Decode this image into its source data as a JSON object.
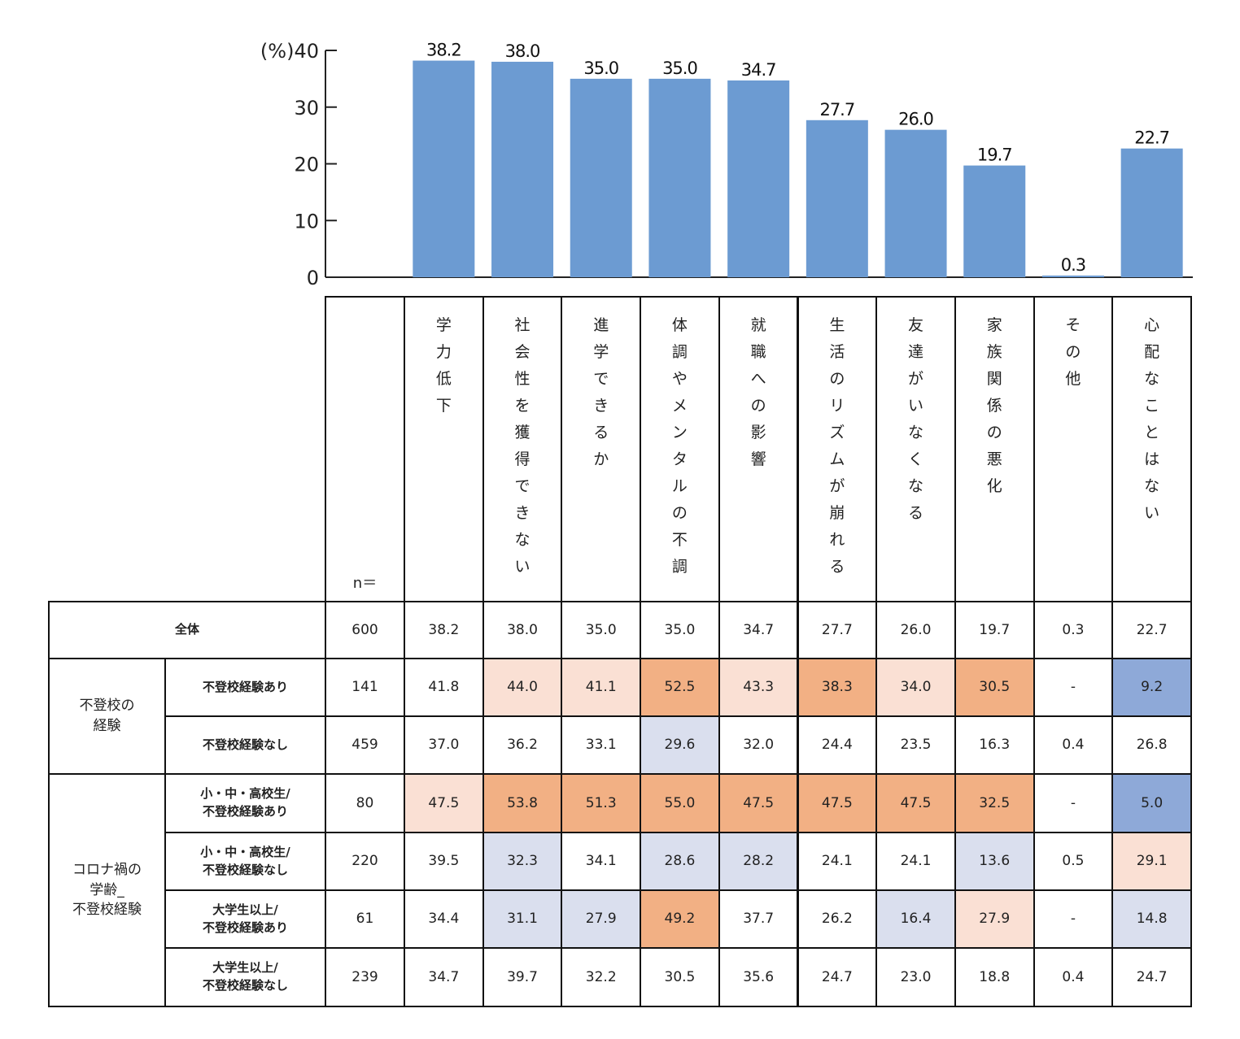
{
  "chart_data": {
    "type": "bar",
    "y_unit_label": "(%)",
    "ylim": [
      0,
      40
    ],
    "yticks": [
      0,
      10,
      20,
      30,
      40
    ],
    "categories": [
      "学力低下",
      "社会性を獲得できない",
      "進学できるか",
      "体調やメンタルの不調",
      "就職への影響",
      "生活のリズムが崩れる",
      "友達がいなくなる",
      "家族関係の悪化",
      "その他",
      "心配なことはない"
    ],
    "values": [
      38.2,
      38.0,
      35.0,
      35.0,
      34.7,
      27.7,
      26.0,
      19.7,
      0.3,
      22.7
    ],
    "value_labels": [
      "38.2",
      "38.0",
      "35.0",
      "35.0",
      "34.7",
      "27.7",
      "26.0",
      "19.7",
      "0.3",
      "22.7"
    ],
    "bar_color": "#6C9BD2"
  },
  "table": {
    "n_label": "n＝",
    "highlight_colors": {
      "o": "#F2B084",
      "lo": "#FAE0D4",
      "lb": "#DADFEE",
      "b": "#8EA9D8"
    },
    "groups": [
      {
        "label": "全体",
        "rows": [
          0
        ]
      },
      {
        "label": "不登校の\n経験",
        "rows": [
          1,
          2
        ]
      },
      {
        "label": "コロナ禍の\n学齢_\n不登校経験",
        "rows": [
          3,
          4,
          5,
          6
        ]
      }
    ],
    "rows": [
      {
        "label": "",
        "n": "600",
        "values": [
          "38.2",
          "38.0",
          "35.0",
          "35.0",
          "34.7",
          "27.7",
          "26.0",
          "19.7",
          "0.3",
          "22.7"
        ],
        "hl": [
          "",
          "",
          "",
          "",
          "",
          "",
          "",
          "",
          "",
          ""
        ]
      },
      {
        "label": "不登校経験あり",
        "n": "141",
        "values": [
          "41.8",
          "44.0",
          "41.1",
          "52.5",
          "43.3",
          "38.3",
          "34.0",
          "30.5",
          "-",
          "9.2"
        ],
        "hl": [
          "",
          "lo",
          "lo",
          "o",
          "lo",
          "o",
          "lo",
          "o",
          "",
          "b"
        ]
      },
      {
        "label": "不登校経験なし",
        "n": "459",
        "values": [
          "37.0",
          "36.2",
          "33.1",
          "29.6",
          "32.0",
          "24.4",
          "23.5",
          "16.3",
          "0.4",
          "26.8"
        ],
        "hl": [
          "",
          "",
          "",
          "lb",
          "",
          "",
          "",
          "",
          "",
          ""
        ]
      },
      {
        "label": "小・中・高校生/\n不登校経験あり",
        "n": "80",
        "values": [
          "47.5",
          "53.8",
          "51.3",
          "55.0",
          "47.5",
          "47.5",
          "47.5",
          "32.5",
          "-",
          "5.0"
        ],
        "hl": [
          "lo",
          "o",
          "o",
          "o",
          "o",
          "o",
          "o",
          "o",
          "",
          "b"
        ]
      },
      {
        "label": "小・中・高校生/\n不登校経験なし",
        "n": "220",
        "values": [
          "39.5",
          "32.3",
          "34.1",
          "28.6",
          "28.2",
          "24.1",
          "24.1",
          "13.6",
          "0.5",
          "29.1"
        ],
        "hl": [
          "",
          "lb",
          "",
          "lb",
          "lb",
          "",
          "",
          "lb",
          "",
          "lo"
        ]
      },
      {
        "label": "大学生以上/\n不登校経験あり",
        "n": "61",
        "values": [
          "34.4",
          "31.1",
          "27.9",
          "49.2",
          "37.7",
          "26.2",
          "16.4",
          "27.9",
          "-",
          "14.8"
        ],
        "hl": [
          "",
          "lb",
          "lb",
          "o",
          "",
          "",
          "lb",
          "lo",
          "",
          "lb"
        ]
      },
      {
        "label": "大学生以上/\n不登校経験なし",
        "n": "239",
        "values": [
          "34.7",
          "39.7",
          "32.2",
          "30.5",
          "35.6",
          "24.7",
          "23.0",
          "18.8",
          "0.4",
          "24.7"
        ],
        "hl": [
          "",
          "",
          "",
          "",
          "",
          "",
          "",
          "",
          "",
          ""
        ]
      }
    ]
  }
}
